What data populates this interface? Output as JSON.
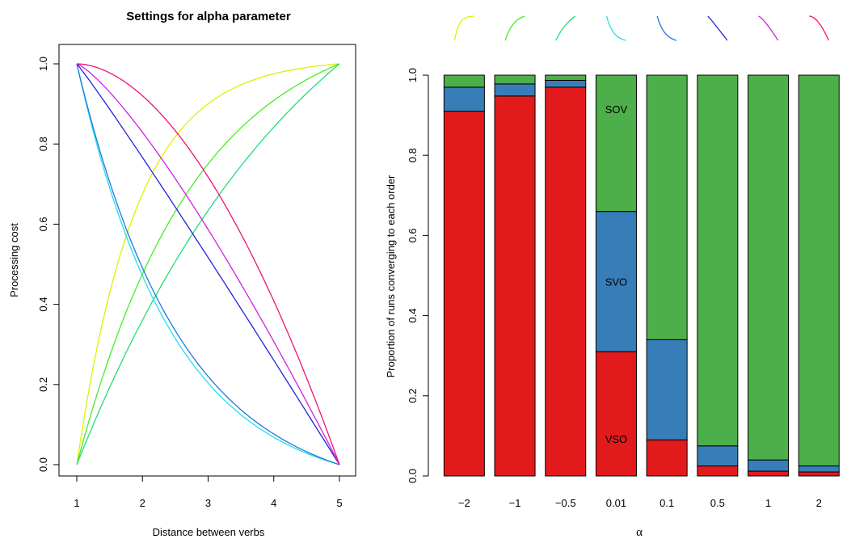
{
  "chart_data": [
    {
      "type": "line",
      "title": "Settings for alpha parameter",
      "xlabel": "Distance between verbs",
      "ylabel": "Processing cost",
      "xlim": [
        1,
        5
      ],
      "ylim": [
        0,
        1
      ],
      "xticks": [
        "1",
        "2",
        "3",
        "4",
        "5"
      ],
      "yticks": [
        "0.0",
        "0.2",
        "0.4",
        "0.6",
        "0.8",
        "1.0"
      ],
      "grid": false,
      "series": [
        {
          "alpha": -2,
          "color": "#e0f000",
          "direction": "increasing"
        },
        {
          "alpha": -1,
          "color": "#44ee22",
          "direction": "increasing"
        },
        {
          "alpha": -0.5,
          "color": "#22dd77",
          "direction": "increasing"
        },
        {
          "alpha": 0.01,
          "color": "#22e0e8",
          "direction": "decreasing"
        },
        {
          "alpha": 0.1,
          "color": "#2277dd",
          "direction": "decreasing"
        },
        {
          "alpha": 0.5,
          "color": "#2222dd",
          "direction": "decreasing"
        },
        {
          "alpha": 1,
          "color": "#cc22dd",
          "direction": "decreasing"
        },
        {
          "alpha": 2,
          "color": "#ee1177",
          "direction": "decreasing"
        }
      ]
    },
    {
      "type": "bar",
      "stacked": true,
      "xlabel": "α",
      "ylabel": "Proportion of runs converging to each order",
      "ylim": [
        0,
        1
      ],
      "yticks": [
        "0.0",
        "0.2",
        "0.4",
        "0.6",
        "0.8",
        "1.0"
      ],
      "categories": [
        "−2",
        "−1",
        "−0.5",
        "0.01",
        "0.1",
        "0.5",
        "1",
        "2"
      ],
      "category_colors": [
        "#e0f000",
        "#44ee22",
        "#22dd77",
        "#22e0e8",
        "#2277dd",
        "#2222dd",
        "#cc22dd",
        "#ee1177"
      ],
      "series": [
        {
          "name": "VSO",
          "color": "#e31a1c",
          "values": [
            0.91,
            0.948,
            0.97,
            0.31,
            0.09,
            0.025,
            0.012,
            0.01
          ]
        },
        {
          "name": "SVO",
          "color": "#377eb8",
          "values": [
            0.06,
            0.03,
            0.017,
            0.35,
            0.25,
            0.05,
            0.028,
            0.015
          ]
        },
        {
          "name": "SOV",
          "color": "#4daf4a",
          "values": [
            0.03,
            0.022,
            0.013,
            0.34,
            0.66,
            0.925,
            0.96,
            0.975
          ]
        }
      ],
      "labels_on_category": "0.01"
    }
  ]
}
